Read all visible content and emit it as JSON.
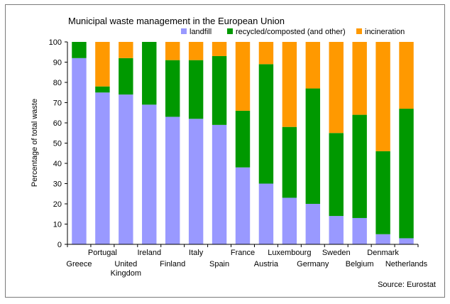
{
  "chart_data": {
    "type": "bar",
    "stacked": true,
    "title": "Municipal waste management in the European Union",
    "ylabel": "Percentage of total waste",
    "xlabel": "",
    "ylim": [
      0,
      100
    ],
    "yticks": [
      0,
      10,
      20,
      30,
      40,
      50,
      60,
      70,
      80,
      90,
      100
    ],
    "grid": false,
    "legend_position": "top",
    "source": "Source: Eurostat",
    "categories": [
      [
        "Greece"
      ],
      [
        "Portugal"
      ],
      [
        "United",
        "Kingdom"
      ],
      [
        "Ireland"
      ],
      [
        "Finland"
      ],
      [
        "Italy"
      ],
      [
        "Spain"
      ],
      [
        "France"
      ],
      [
        "Austria"
      ],
      [
        "Luxembourg"
      ],
      [
        "Germany"
      ],
      [
        "Sweden"
      ],
      [
        "Belgium"
      ],
      [
        "Denmark"
      ],
      [
        "Netherlands"
      ]
    ],
    "series": [
      {
        "name": "landfill",
        "color": "#9999ff",
        "values": [
          92,
          75,
          74,
          69,
          63,
          62,
          59,
          38,
          30,
          23,
          20,
          14,
          13,
          5,
          3
        ]
      },
      {
        "name": "recycled/composted (and other)",
        "color": "#009900",
        "values": [
          8,
          3,
          18,
          31,
          28,
          29,
          34,
          28,
          59,
          35,
          57,
          41,
          51,
          41,
          64
        ]
      },
      {
        "name": "incineration",
        "color": "#ff9900",
        "values": [
          0,
          22,
          8,
          0,
          9,
          9,
          7,
          34,
          11,
          42,
          23,
          45,
          36,
          54,
          33
        ]
      }
    ]
  }
}
